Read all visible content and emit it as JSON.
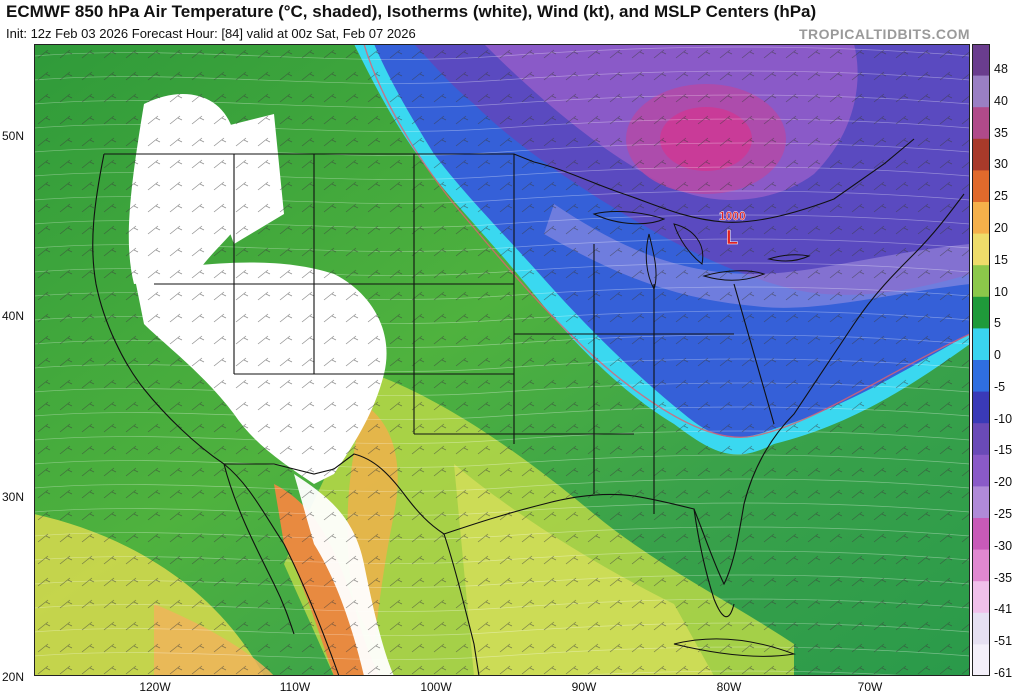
{
  "header": {
    "title": "ECMWF 850 hPa Air Temperature (°C, shaded), Isotherms (white), Wind (kt), and MSLP Centers (hPa)",
    "subtitle": "Init: 12z Feb 03 2026   Forecast Hour: [84]   valid at 00z Sat, Feb 07 2026",
    "brand": "TROPICALTIDBITS.COM"
  },
  "axes": {
    "lat_labels": [
      "50N",
      "40N",
      "30N",
      "20N"
    ],
    "lon_labels": [
      "120W",
      "110W",
      "100W",
      "90W",
      "80W",
      "70W"
    ]
  },
  "colorbar": {
    "labels": [
      "48",
      "40",
      "35",
      "30",
      "25",
      "20",
      "15",
      "10",
      "5",
      "0",
      "-5",
      "-10",
      "-15",
      "-20",
      "-25",
      "-30",
      "-35",
      "-41",
      "-51",
      "-61"
    ],
    "colors": [
      "#6a3d8e",
      "#9a7fc4",
      "#b04a8a",
      "#a83a2a",
      "#e06a2c",
      "#f5b04a",
      "#eedc6a",
      "#8cc84a",
      "#1f9a3a",
      "#3ad4f0",
      "#2f6ee0",
      "#3a3ab8",
      "#6a4ab8",
      "#8a5ac8",
      "#b08ad8",
      "#c85ab8",
      "#e088d0",
      "#f0c0ea",
      "#e6e0f2",
      "#f4f0fa"
    ]
  },
  "map": {
    "pressure_center_value": "1000",
    "pressure_center_symbol": "L",
    "pressure_center_color": "#e02020"
  }
}
